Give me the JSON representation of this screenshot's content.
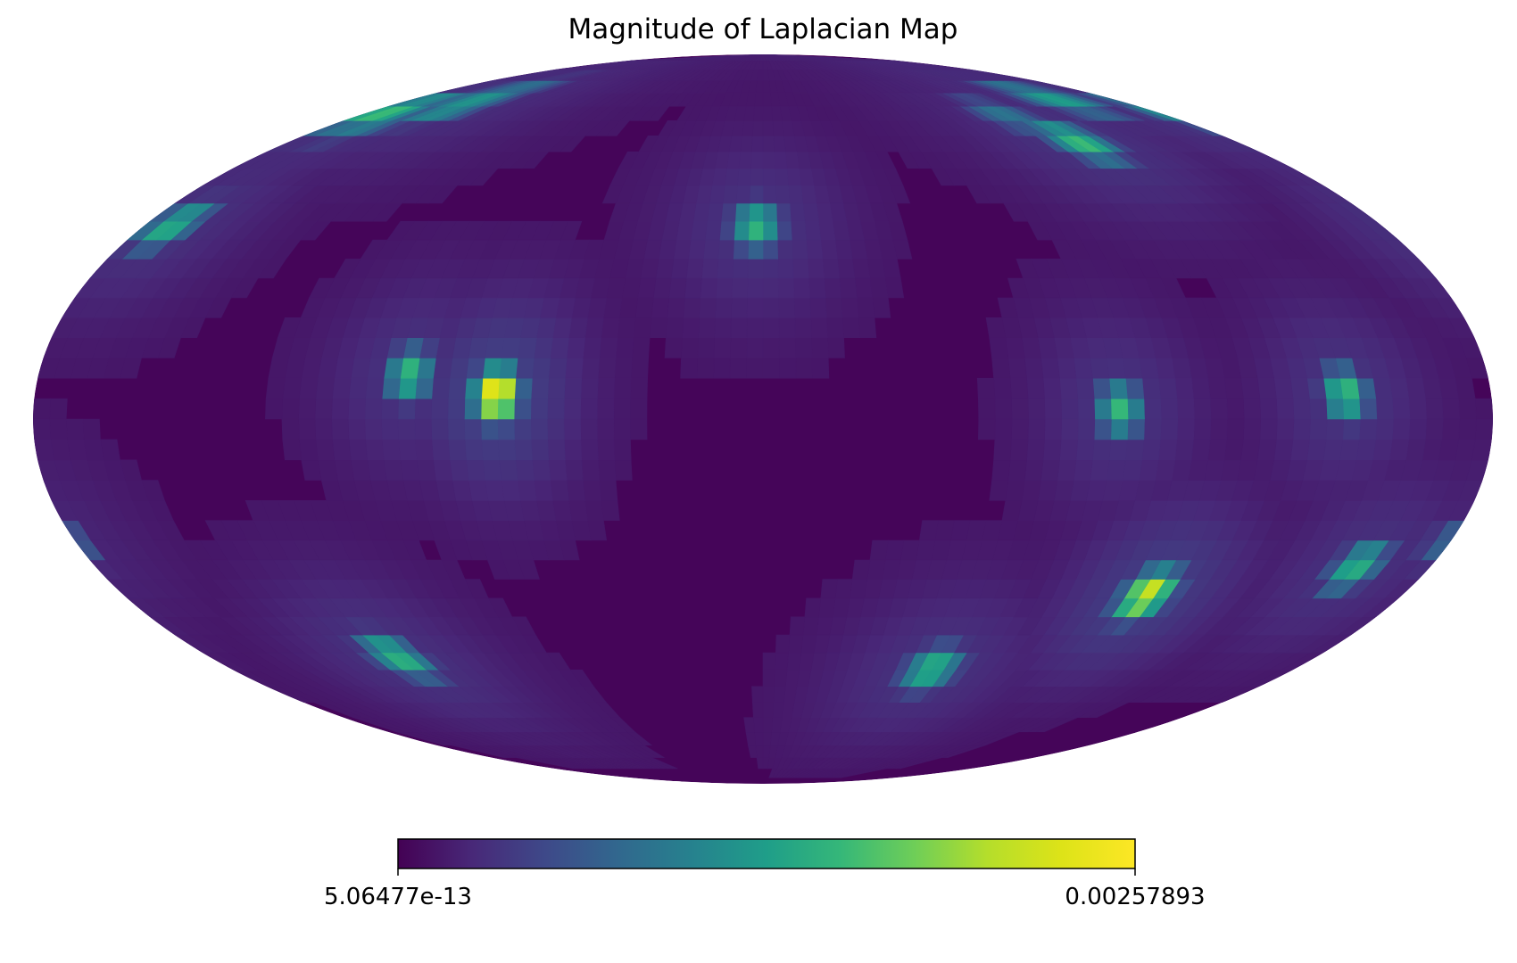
{
  "chart_data": {
    "type": "heatmap",
    "projection": "mollweide",
    "title": "Magnitude of Laplacian Map",
    "colormap": "viridis",
    "pixelation": "coarse diamond-shaped sky pixels",
    "colorbar": {
      "orientation": "horizontal",
      "placement": "bottom",
      "min_label": "5.06477e-13",
      "max_label": "0.00257893",
      "min": 5.06477e-13,
      "max": 0.00257893
    },
    "background_level": 0.05,
    "hotspots": [
      {
        "lon": 172,
        "lat": 40,
        "peak": 0.58
      },
      {
        "lon": 172,
        "lat": 68,
        "peak": 0.62
      },
      {
        "lon": 147,
        "lat": 70,
        "peak": 0.5
      },
      {
        "lon": 165,
        "lat": 65,
        "peak": 0.4
      },
      {
        "lon": 145,
        "lat": 74,
        "peak": 0.35
      },
      {
        "lon": -150,
        "lat": 72,
        "peak": 0.5
      },
      {
        "lon": -120,
        "lat": 60,
        "peak": 0.62
      },
      {
        "lon": -108,
        "lat": 67,
        "peak": 0.35
      },
      {
        "lon": 2,
        "lat": 40,
        "peak": 0.6
      },
      {
        "lon": 88,
        "lat": 9,
        "peak": 0.6
      },
      {
        "lon": 66,
        "lat": 5,
        "peak": 1.0
      },
      {
        "lon": -88,
        "lat": 2,
        "peak": 0.6
      },
      {
        "lon": -144,
        "lat": 5,
        "peak": 0.62
      },
      {
        "lon": -108,
        "lat": -36,
        "peak": 0.88
      },
      {
        "lon": -57,
        "lat": -53,
        "peak": 0.6
      },
      {
        "lon": -160,
        "lat": -30,
        "peak": 0.58
      },
      {
        "lon": 119,
        "lat": -50,
        "peak": 0.6
      },
      {
        "lon": -179,
        "lat": -25,
        "peak": 0.3
      }
    ]
  }
}
